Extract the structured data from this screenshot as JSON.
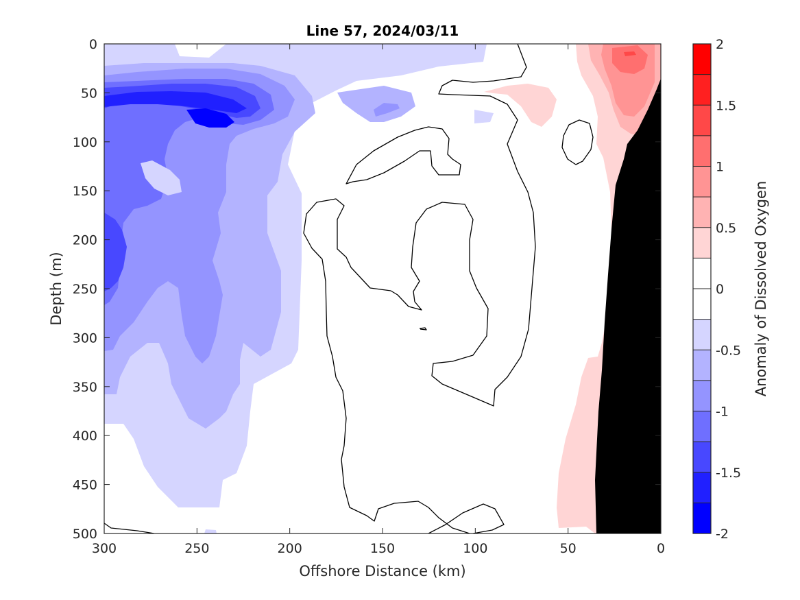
{
  "chart_data": {
    "type": "heatmap",
    "title": "Line 57, 2024/03/11",
    "xlabel": "Offshore Distance (km)",
    "ylabel": "Depth (m)",
    "colorbar_label": "Anomaly of Dissolved Oxygen",
    "x_ticks": [
      "300",
      "250",
      "200",
      "150",
      "100",
      "50",
      "0"
    ],
    "y_ticks": [
      "0",
      "50",
      "100",
      "150",
      "200",
      "250",
      "300",
      "350",
      "400",
      "450",
      "500"
    ],
    "colorbar_ticks": [
      "2",
      "1.5",
      "1",
      "0.5",
      "0",
      "-0.5",
      "-1",
      "-1.5",
      "-2"
    ],
    "xlim": [
      300,
      0
    ],
    "ylim": [
      0,
      500
    ],
    "clim": [
      -2,
      2
    ],
    "x_reversed": true,
    "y_reversed": true,
    "contour_levels": [
      -2,
      -1.75,
      -1.5,
      -1.25,
      -1,
      -0.75,
      -0.5,
      -0.25,
      0,
      0.25,
      0.5,
      0.75,
      1,
      1.25,
      1.5,
      1.75,
      2
    ],
    "colorbar_colors": [
      "#0000ff",
      "#2020ff",
      "#4848ff",
      "#6f6fff",
      "#9494ff",
      "#b3b3ff",
      "#d5d5ff",
      "#ffffff",
      "#ffffff",
      "#ffd5d5",
      "#ffb3b3",
      "#ff9494",
      "#ff6f6f",
      "#ff4848",
      "#ff2020",
      "#ff0000"
    ],
    "bathymetry_color": "#000000",
    "zero_contour_color": "#000000"
  }
}
